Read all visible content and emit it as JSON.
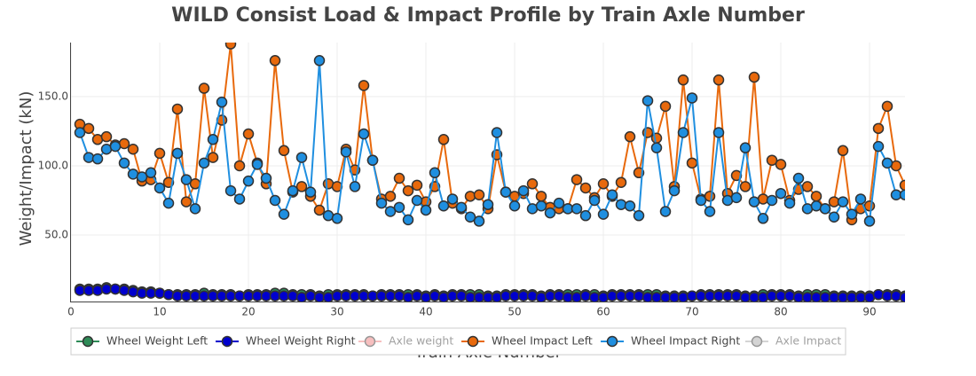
{
  "chart_data": {
    "type": "line",
    "title": "WILD Consist Load & Impact Profile by Train Axle Number",
    "x_label": "Train Axle Number",
    "y_label": "Weight/Impact (kN)",
    "x": [
      1,
      2,
      3,
      4,
      5,
      6,
      7,
      8,
      9,
      10,
      11,
      12,
      13,
      14,
      15,
      16,
      17,
      18,
      19,
      20,
      21,
      22,
      23,
      24,
      25,
      26,
      27,
      28,
      29,
      30,
      31,
      32,
      33,
      34,
      35,
      36,
      37,
      38,
      39,
      40,
      41,
      42,
      43,
      44,
      45,
      46,
      47,
      48,
      49,
      50,
      51,
      52,
      53,
      54,
      55,
      56,
      57,
      58,
      59,
      60,
      61,
      62,
      63,
      64,
      65,
      66,
      67,
      68,
      69,
      70,
      71,
      72,
      73,
      74,
      75,
      76,
      77,
      78,
      79,
      80,
      81,
      82,
      83,
      84,
      85,
      86,
      87,
      88,
      89,
      90,
      91,
      92,
      93,
      94
    ],
    "xlim": [
      0,
      94
    ],
    "xticks": [
      0,
      10,
      20,
      30,
      40,
      50,
      60,
      70,
      80,
      90
    ],
    "ylim": [
      2,
      189
    ],
    "yticks": [
      {
        "value": 50,
        "label": "50.0"
      },
      {
        "value": 100,
        "label": "100.0"
      },
      {
        "value": 150,
        "label": "150.0"
      }
    ],
    "grid": true,
    "legend": "bottom",
    "series": [
      {
        "name": "Wheel Weight Left",
        "color": "#2e8b57",
        "visible": true,
        "values": [
          11,
          11,
          11,
          12,
          11,
          11,
          10,
          9,
          9,
          8,
          7,
          7,
          7,
          7,
          8,
          7,
          7,
          7,
          6,
          7,
          7,
          7,
          8,
          8,
          7,
          7,
          7,
          6,
          7,
          7,
          7,
          7,
          7,
          6,
          7,
          7,
          7,
          7,
          7,
          6,
          7,
          6,
          7,
          7,
          7,
          7,
          6,
          6,
          7,
          7,
          7,
          7,
          6,
          7,
          7,
          7,
          7,
          7,
          7,
          6,
          7,
          7,
          7,
          7,
          7,
          7,
          6,
          6,
          6,
          6,
          7,
          7,
          7,
          7,
          7,
          6,
          6,
          7,
          7,
          7,
          7,
          6,
          7,
          7,
          7,
          6,
          6,
          6,
          6,
          6,
          7,
          7,
          7,
          6
        ]
      },
      {
        "name": "Wheel Weight Right",
        "color": "#0000cd",
        "visible": true,
        "values": [
          10,
          10,
          10,
          11,
          11,
          10,
          9,
          8,
          8,
          8,
          7,
          6,
          6,
          6,
          6,
          6,
          6,
          6,
          6,
          6,
          6,
          6,
          6,
          6,
          6,
          5,
          6,
          5,
          5,
          6,
          6,
          6,
          6,
          6,
          6,
          6,
          6,
          5,
          6,
          5,
          6,
          5,
          6,
          6,
          5,
          5,
          5,
          5,
          6,
          6,
          6,
          6,
          5,
          6,
          6,
          5,
          5,
          6,
          5,
          5,
          6,
          6,
          6,
          6,
          5,
          5,
          5,
          5,
          5,
          6,
          6,
          6,
          6,
          6,
          6,
          5,
          5,
          5,
          6,
          6,
          6,
          5,
          5,
          5,
          5,
          5,
          5,
          5,
          5,
          5,
          7,
          6,
          6,
          5
        ]
      },
      {
        "name": "Axle weight",
        "color": "#f08080",
        "visible": false
      },
      {
        "name": "Wheel Impact Left",
        "color": "#e8690c",
        "visible": true,
        "values": [
          130,
          127,
          119,
          121,
          115,
          116,
          112,
          89,
          90,
          109,
          88,
          141,
          74,
          87,
          156,
          106,
          133,
          188,
          100,
          123,
          102,
          87,
          176,
          111,
          81,
          85,
          78,
          68,
          87,
          85,
          112,
          97,
          158,
          104,
          76,
          78,
          91,
          82,
          86,
          74,
          85,
          119,
          73,
          69,
          78,
          79,
          69,
          108,
          81,
          78,
          80,
          87,
          78,
          70,
          69,
          69,
          90,
          84,
          77,
          87,
          78,
          88,
          121,
          95,
          124,
          120,
          143,
          85,
          162,
          102,
          76,
          78,
          162,
          80,
          93,
          85,
          164,
          76,
          104,
          101,
          75,
          83,
          85,
          78,
          69,
          74,
          111,
          61,
          69,
          71,
          127,
          143,
          100,
          86
        ]
      },
      {
        "name": "Wheel Impact Right",
        "color": "#1f8fe0",
        "visible": true,
        "values": [
          124,
          106,
          105,
          112,
          114,
          102,
          94,
          92,
          95,
          84,
          73,
          109,
          90,
          69,
          102,
          119,
          146,
          82,
          76,
          89,
          101,
          91,
          75,
          65,
          82,
          106,
          81,
          176,
          64,
          62,
          110,
          85,
          123,
          104,
          73,
          67,
          70,
          61,
          75,
          68,
          95,
          71,
          76,
          70,
          63,
          60,
          72,
          124,
          81,
          71,
          82,
          69,
          71,
          66,
          73,
          69,
          69,
          64,
          75,
          65,
          79,
          72,
          71,
          64,
          147,
          113,
          67,
          82,
          124,
          149,
          75,
          67,
          124,
          75,
          77,
          113,
          74,
          62,
          75,
          80,
          73,
          91,
          69,
          71,
          69,
          63,
          74,
          65,
          76,
          60,
          114,
          102,
          79,
          79
        ]
      },
      {
        "name": "Axle Impact",
        "color": "#aaaaaa",
        "visible": false
      }
    ]
  }
}
